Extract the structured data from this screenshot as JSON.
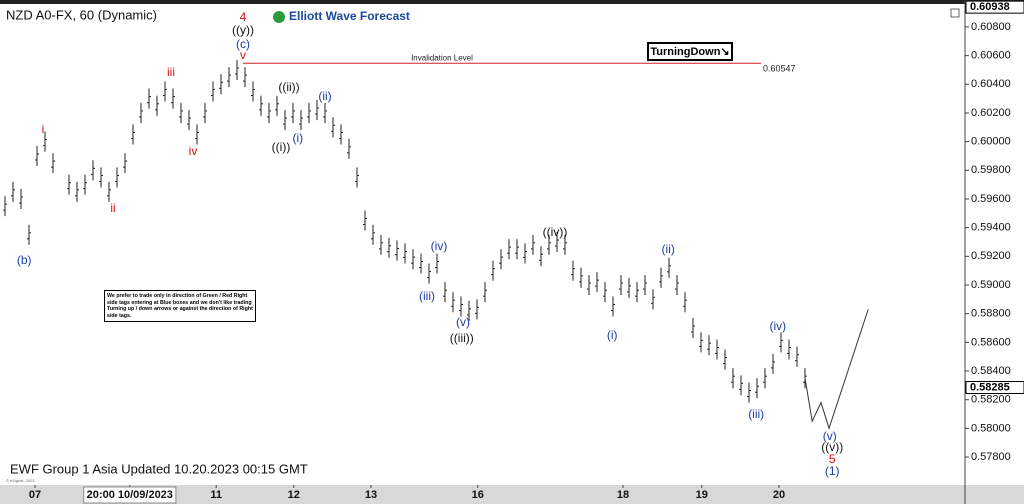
{
  "chart_data": {
    "type": "ohlc",
    "title": "NZD A0-FX, 60 (Dynamic)",
    "brand": "Elliott Wave Forecast",
    "tag": "TurningDown↘",
    "note": "We prefer to trade only in direction of Green / Red Right side tags entering at Blue boxes and we don't like trading Turning up / down arrows or against the direction of Right side tags.",
    "footer": "EWF Group 1 Asia Updated 10.20.2023 00:15 GMT",
    "copyright": "© eSignal, 2023",
    "color": "#222222",
    "xlim": [
      0,
      120
    ],
    "ylim": [
      0.57605,
      0.60953
    ],
    "yticks": [
      {
        "value": 0.578,
        "label": "0.57800"
      },
      {
        "value": 0.58,
        "label": "0.58000"
      },
      {
        "value": 0.582,
        "label": "0.58200"
      },
      {
        "value": 0.584,
        "label": "0.58400"
      },
      {
        "value": 0.586,
        "label": "0.58600"
      },
      {
        "value": 0.588,
        "label": "0.58800"
      },
      {
        "value": 0.59,
        "label": "0.59000"
      },
      {
        "value": 0.592,
        "label": "0.59200"
      },
      {
        "value": 0.594,
        "label": "0.59400"
      },
      {
        "value": 0.596,
        "label": "0.59600"
      },
      {
        "value": 0.598,
        "label": "0.59800"
      },
      {
        "value": 0.6,
        "label": "0.60000"
      },
      {
        "value": 0.602,
        "label": "0.60200"
      },
      {
        "value": 0.604,
        "label": "0.60400"
      },
      {
        "value": 0.606,
        "label": "0.60600"
      },
      {
        "value": 0.608,
        "label": "0.60800"
      }
    ],
    "xticks": [
      {
        "value": 3.75,
        "label": "07"
      },
      {
        "value": 15.6,
        "label": "20:00 10/09/2023"
      },
      {
        "value": 26.4,
        "label": "11"
      },
      {
        "value": 36.1,
        "label": "12"
      },
      {
        "value": 45.75,
        "label": "13"
      },
      {
        "value": 59.1,
        "label": "16"
      },
      {
        "value": 77.25,
        "label": "18"
      },
      {
        "value": 87.1,
        "label": "19"
      },
      {
        "value": 96.75,
        "label": "20"
      }
    ],
    "high": [
      0.5962,
      0.5972,
      0.5967,
      0.5942,
      0.5997,
      0.6007,
      0.5992,
      null,
      0.5977,
      0.5972,
      0.5977,
      0.5987,
      0.5982,
      0.5972,
      0.5982,
      0.5992,
      0.6012,
      0.6027,
      0.6037,
      0.6032,
      0.6042,
      0.6037,
      0.6027,
      0.6022,
      0.6012,
      0.6027,
      0.6042,
      0.6047,
      0.6052,
      0.6057,
      0.6052,
      0.6042,
      0.6032,
      0.6027,
      0.6032,
      0.6022,
      0.6027,
      0.6022,
      0.6027,
      0.6029,
      0.6027,
      0.6017,
      0.6012,
      0.6002,
      0.5982,
      0.5952,
      0.5942,
      0.5935,
      0.5933,
      0.5931,
      0.5929,
      0.5925,
      0.5922,
      0.5915,
      0.5922,
      0.5902,
      0.5895,
      0.5892,
      0.5889,
      0.589,
      0.5902,
      0.5917,
      0.5925,
      0.5932,
      0.5932,
      0.5929,
      0.5935,
      0.5927,
      0.5935,
      0.5937,
      0.5935,
      0.5917,
      0.5912,
      0.5907,
      0.5909,
      0.5902,
      0.5892,
      0.5907,
      0.5905,
      0.5902,
      0.5907,
      0.5897,
      0.5912,
      0.5919,
      0.5907,
      0.5895,
      0.5877,
      0.5867,
      0.5865,
      0.5862,
      0.5855,
      0.5842,
      0.5837,
      0.5832,
      0.5835,
      0.5842,
      0.5852,
      0.5867,
      0.5862,
      0.5857,
      0.5842
    ],
    "low": [
      0.5948,
      0.5958,
      0.5953,
      0.5928,
      0.5983,
      0.5993,
      0.5978,
      null,
      0.5963,
      0.5958,
      0.5963,
      0.5973,
      0.5968,
      0.5958,
      0.5968,
      0.5978,
      0.5998,
      0.6013,
      0.6023,
      0.6018,
      0.6028,
      0.6023,
      0.6013,
      0.6008,
      0.5998,
      0.6013,
      0.6028,
      0.6033,
      0.6038,
      0.6043,
      0.6038,
      0.6028,
      0.6018,
      0.6013,
      0.6018,
      0.6008,
      0.6013,
      0.6008,
      0.6013,
      0.6015,
      0.6013,
      0.6003,
      0.5998,
      0.5988,
      0.5968,
      0.5938,
      0.5928,
      0.5921,
      0.5919,
      0.5917,
      0.5915,
      0.5911,
      0.5908,
      0.5901,
      0.5908,
      0.5888,
      0.5881,
      0.5878,
      0.5875,
      0.5876,
      0.5888,
      0.5903,
      0.5911,
      0.5918,
      0.5918,
      0.5915,
      0.5921,
      0.5913,
      0.5921,
      0.5923,
      0.5921,
      0.5903,
      0.5898,
      0.5893,
      0.5895,
      0.5888,
      0.5878,
      0.5893,
      0.5891,
      0.5888,
      0.5893,
      0.5883,
      0.5898,
      0.5905,
      0.5893,
      0.5881,
      0.5863,
      0.5853,
      0.5851,
      0.5848,
      0.5841,
      0.5828,
      0.5823,
      0.5818,
      0.5821,
      0.5828,
      0.5838,
      0.5853,
      0.5848,
      0.5843,
      0.5828
    ],
    "projection": {
      "x": [
        100,
        100.9,
        102,
        103,
        107.9
      ],
      "y": [
        0.5835,
        0.5805,
        0.5818,
        0.58,
        0.5883
      ],
      "color": "#333333"
    },
    "invalidation": {
      "label": "Invalidation Level",
      "value": 0.60547,
      "x": [
        29.75,
        94.5
      ],
      "color": "#d02020"
    },
    "price_marks": [
      0.60938,
      0.58285
    ],
    "annotations": [
      {
        "text": "4",
        "x": 29.75,
        "y": 0.60863,
        "color": "#d01010"
      },
      {
        "text": "((y))",
        "x": 29.75,
        "y": 0.60772,
        "color": "#111111"
      },
      {
        "text": "(c)",
        "x": 29.75,
        "y": 0.60674,
        "color": "#1a3aa8"
      },
      {
        "text": "v",
        "x": 29.75,
        "y": 0.60598,
        "color": "#d01010"
      },
      {
        "text": "iii",
        "x": 20.75,
        "y": 0.60479,
        "color": "#d01010"
      },
      {
        "text": "iv",
        "x": 23.5,
        "y": 0.59928,
        "color": "#d01010"
      },
      {
        "text": "i",
        "x": 4.75,
        "y": 0.60081,
        "color": "#d01010"
      },
      {
        "text": "ii",
        "x": 13.5,
        "y": 0.5953,
        "color": "#d01010"
      },
      {
        "text": "(b)",
        "x": 2.4,
        "y": 0.59168,
        "color": "#1a3aa8"
      },
      {
        "text": "((ii))",
        "x": 35.5,
        "y": 0.60374,
        "color": "#111111"
      },
      {
        "text": "(ii)",
        "x": 40,
        "y": 0.60312,
        "color": "#1a3aa8"
      },
      {
        "text": "((i))",
        "x": 34.5,
        "y": 0.59956,
        "color": "#111111"
      },
      {
        "text": "(i)",
        "x": 36.6,
        "y": 0.60019,
        "color": "#1a3aa8"
      },
      {
        "text": "(iv)",
        "x": 54.25,
        "y": 0.59265,
        "color": "#1a3aa8"
      },
      {
        "text": "(iii)",
        "x": 52.75,
        "y": 0.58916,
        "color": "#1a3aa8"
      },
      {
        "text": "(v)",
        "x": 57.25,
        "y": 0.58735,
        "color": "#1a3aa8"
      },
      {
        "text": "((iii))",
        "x": 57.1,
        "y": 0.58624,
        "color": "#111111"
      },
      {
        "text": "((iv))",
        "x": 68.75,
        "y": 0.59363,
        "color": "#111111"
      },
      {
        "text": "(ii)",
        "x": 82.9,
        "y": 0.59244,
        "color": "#1a3aa8"
      },
      {
        "text": "(i)",
        "x": 75.9,
        "y": 0.58644,
        "color": "#1a3aa8"
      },
      {
        "text": "(iv)",
        "x": 96.6,
        "y": 0.58707,
        "color": "#1a3aa8"
      },
      {
        "text": "(iii)",
        "x": 93.9,
        "y": 0.58093,
        "color": "#1a3aa8"
      },
      {
        "text": "(v)",
        "x": 103.1,
        "y": 0.5794,
        "color": "#1a3aa8"
      },
      {
        "text": "((v))",
        "x": 103.4,
        "y": 0.57863,
        "color": "#111111"
      },
      {
        "text": "5",
        "x": 103.4,
        "y": 0.57779,
        "color": "#d01010"
      },
      {
        "text": "(1)",
        "x": 103.4,
        "y": 0.57696,
        "color": "#1a3aa8"
      }
    ]
  }
}
